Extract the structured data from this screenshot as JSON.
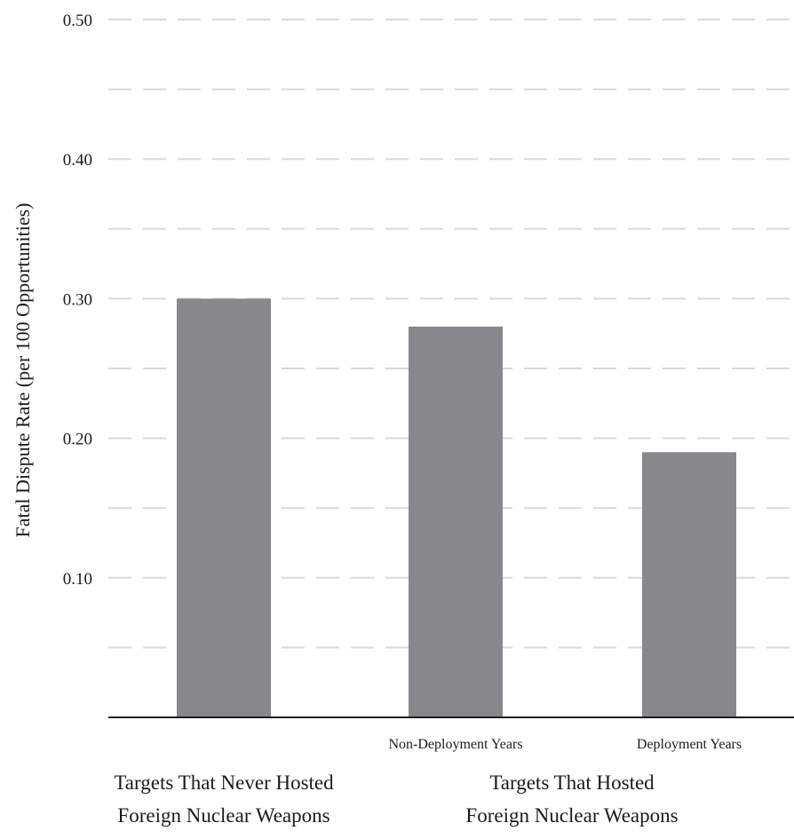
{
  "chart_data": {
    "type": "bar",
    "title": "",
    "ylabel": "Fatal Dispute Rate (per 100 Opportunities)",
    "xlabel": "",
    "ylim": [
      0,
      0.5
    ],
    "yticks": [
      0.1,
      0.2,
      0.3,
      0.4,
      0.5
    ],
    "ytick_labels": [
      "0.10",
      "0.20",
      "0.30",
      "0.40",
      "0.50"
    ],
    "minor_gridlines": [
      0.05,
      0.15,
      0.25,
      0.35,
      0.45
    ],
    "grid": true,
    "bar_color": "#88888c",
    "grid_color": "#d9d9d9",
    "categories": [
      "",
      "Non-Deployment Years",
      "Deployment Years"
    ],
    "values": [
      0.3,
      0.28,
      0.19
    ],
    "groups": [
      {
        "label_lines": [
          "Targets That Never Hosted",
          "Foreign Nuclear Weapons"
        ],
        "categories": [
          0
        ]
      },
      {
        "label_lines": [
          "Targets That Hosted",
          "Foreign Nuclear Weapons"
        ],
        "categories": [
          1,
          2
        ]
      }
    ]
  }
}
